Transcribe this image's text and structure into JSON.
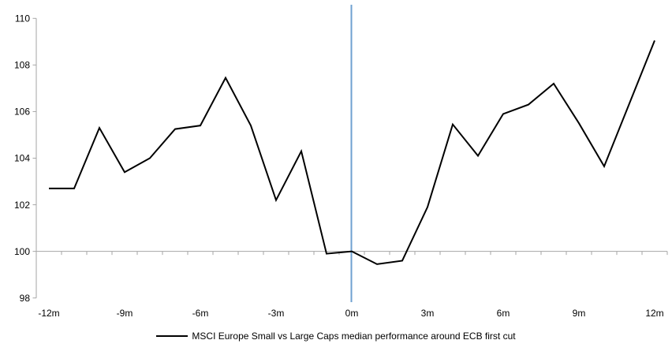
{
  "chart_data": {
    "type": "line",
    "title": "",
    "xlabel": "",
    "ylabel": "",
    "x_unit_suffix": "m",
    "x": [
      -12,
      -11,
      -10,
      -9,
      -8,
      -7,
      -6,
      -5,
      -4,
      -3,
      -2,
      -1,
      0,
      1,
      2,
      3,
      4,
      5,
      6,
      7,
      8,
      9,
      10,
      11,
      12
    ],
    "series": [
      {
        "name": "MSCI Europe Small vs Large Caps median performance around ECB first cut",
        "color": "#000000",
        "values": [
          102.7,
          102.7,
          105.3,
          103.4,
          104.0,
          105.25,
          105.4,
          107.45,
          105.4,
          102.2,
          104.3,
          99.9,
          100.0,
          99.45,
          99.6,
          101.9,
          105.45,
          104.1,
          105.9,
          106.3,
          107.2,
          105.5,
          103.65,
          106.35,
          109.05
        ]
      }
    ],
    "x_ticks": [
      {
        "month": -12,
        "label": "-12m"
      },
      {
        "month": -9,
        "label": "-9m"
      },
      {
        "month": -6,
        "label": "-6m"
      },
      {
        "month": -3,
        "label": "-3m"
      },
      {
        "month": 0,
        "label": "0m"
      },
      {
        "month": 3,
        "label": "3m"
      },
      {
        "month": 6,
        "label": "6m"
      },
      {
        "month": 9,
        "label": "9m"
      },
      {
        "month": 12,
        "label": "12m"
      }
    ],
    "y_ticks": [
      98,
      100,
      102,
      104,
      106,
      108,
      110
    ],
    "ylim": [
      98,
      110
    ],
    "xlim": [
      -12.5,
      12.5
    ],
    "x_axis_crosses_at": 100,
    "grid": "off",
    "legend_position": "bottom-center",
    "axis_color": "#A6A6A6",
    "event_line": {
      "x": 0,
      "color": "#6FA1D0"
    }
  }
}
